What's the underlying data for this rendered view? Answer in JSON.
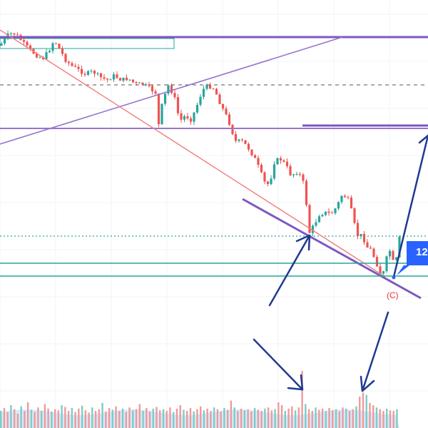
{
  "chart_data": {
    "type": "candlestick",
    "title": "",
    "xlabel": "",
    "ylabel": "",
    "grid": true,
    "colors": {
      "up": "#26a69a",
      "down": "#ef5350",
      "trend_line_red": "#f08080",
      "trend_line_purple": "#7e57c2",
      "support_line": "#26a69a",
      "arrow": "#1f3a93",
      "badge": "#2962ff",
      "volume_up": "#80cbc4",
      "volume_down": "#ef9a9a",
      "volume_ma": "#bbdefb"
    },
    "annotations": {
      "wave_label": "(C)",
      "badge_text": "12"
    },
    "price_path": [
      [
        0,
        64
      ],
      [
        10,
        50
      ],
      [
        18,
        46
      ],
      [
        26,
        52
      ],
      [
        34,
        62
      ],
      [
        44,
        72
      ],
      [
        52,
        78
      ],
      [
        60,
        82
      ],
      [
        68,
        72
      ],
      [
        76,
        56
      ],
      [
        84,
        70
      ],
      [
        92,
        84
      ],
      [
        100,
        92
      ],
      [
        110,
        98
      ],
      [
        120,
        104
      ],
      [
        130,
        100
      ],
      [
        140,
        108
      ],
      [
        150,
        112
      ],
      [
        160,
        106
      ],
      [
        170,
        112
      ],
      [
        180,
        110
      ],
      [
        190,
        118
      ],
      [
        200,
        118
      ],
      [
        210,
        124
      ],
      [
        218,
        130
      ],
      [
        222,
        178
      ],
      [
        228,
        142
      ],
      [
        236,
        120
      ],
      [
        244,
        134
      ],
      [
        252,
        170
      ],
      [
        260,
        162
      ],
      [
        268,
        168
      ],
      [
        276,
        148
      ],
      [
        284,
        126
      ],
      [
        292,
        120
      ],
      [
        300,
        124
      ],
      [
        310,
        148
      ],
      [
        320,
        168
      ],
      [
        330,
        198
      ],
      [
        340,
        198
      ],
      [
        350,
        210
      ],
      [
        358,
        224
      ],
      [
        364,
        238
      ],
      [
        372,
        258
      ],
      [
        378,
        258
      ],
      [
        384,
        228
      ],
      [
        392,
        222
      ],
      [
        400,
        230
      ],
      [
        408,
        246
      ],
      [
        418,
        240
      ],
      [
        426,
        258
      ],
      [
        430,
        290
      ],
      [
        434,
        326
      ],
      [
        440,
        316
      ],
      [
        448,
        300
      ],
      [
        456,
        298
      ],
      [
        464,
        300
      ],
      [
        472,
        290
      ],
      [
        480,
        272
      ],
      [
        488,
        280
      ],
      [
        494,
        300
      ],
      [
        500,
        330
      ],
      [
        508,
        330
      ],
      [
        514,
        346
      ],
      [
        520,
        350
      ],
      [
        526,
        364
      ],
      [
        532,
        380
      ],
      [
        536,
        390
      ],
      [
        540,
        368
      ],
      [
        546,
        350
      ],
      [
        552,
        370
      ],
      [
        556,
        362
      ],
      [
        560,
        334
      ]
    ],
    "volume": [
      0.3,
      0.35,
      0.28,
      0.4,
      0.33,
      0.25,
      0.38,
      0.3,
      0.45,
      0.32,
      0.28,
      0.36,
      0.3,
      0.42,
      0.34,
      0.29,
      0.33,
      0.31,
      0.4,
      0.37,
      0.3,
      0.35,
      0.28,
      0.34,
      0.39,
      0.31,
      0.27,
      0.36,
      0.3,
      0.33,
      0.44,
      0.29,
      0.35,
      0.32,
      0.38,
      0.3,
      0.34,
      0.28,
      0.36,
      0.31,
      0.33,
      0.42,
      0.3,
      0.35,
      0.29,
      0.34,
      0.37,
      0.31,
      0.33,
      0.3,
      0.36,
      0.28,
      0.34,
      0.4,
      0.32,
      0.3,
      0.35,
      0.29,
      0.33,
      0.38,
      0.31,
      0.34,
      0.3,
      0.36,
      0.33,
      0.29,
      0.35,
      0.32,
      0.48,
      0.36,
      0.3,
      0.34,
      0.31,
      0.33,
      0.29,
      0.35,
      0.32,
      0.3,
      0.34,
      0.36,
      0.31,
      0.33,
      0.45,
      0.4,
      0.3,
      0.34,
      0.38,
      0.31,
      0.36,
      1.0,
      0.42,
      0.33,
      0.3,
      0.36,
      0.32,
      0.34,
      0.3,
      0.35,
      0.31,
      0.33,
      0.29,
      0.36,
      0.34,
      0.3,
      0.33,
      0.38,
      0.55,
      0.62,
      0.58,
      0.44,
      0.4,
      0.36,
      0.33,
      0.3,
      0.34,
      0.31,
      0.3,
      0.33
    ]
  }
}
